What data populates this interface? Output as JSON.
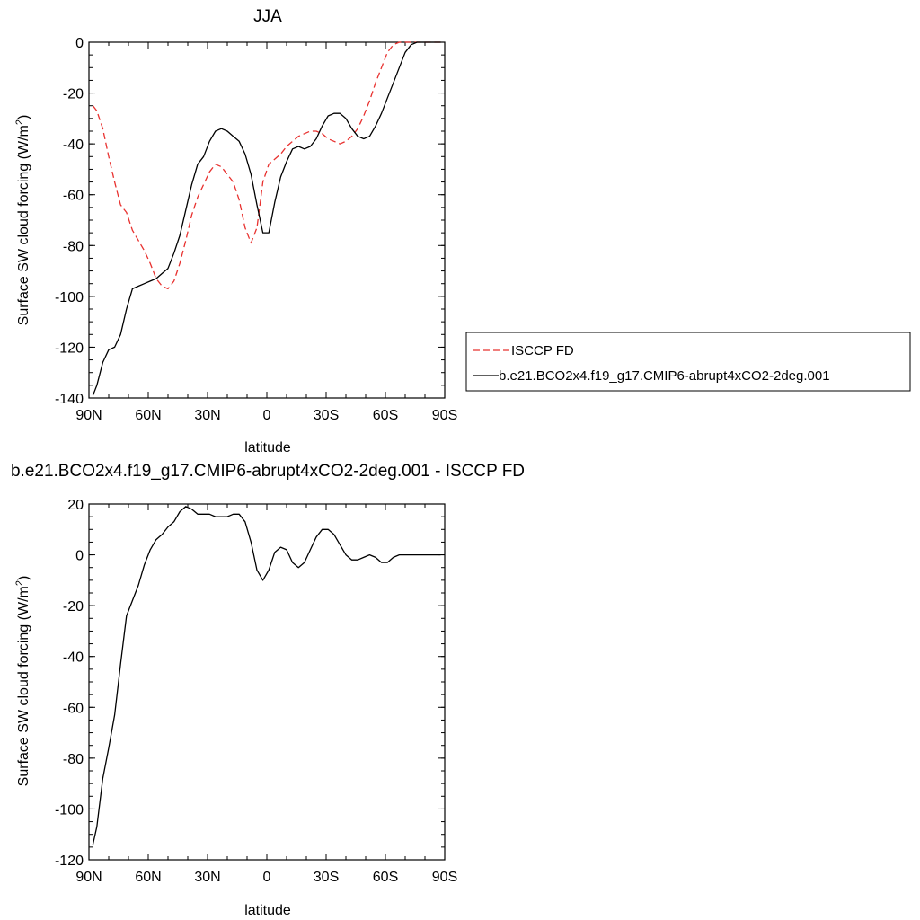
{
  "chart_data": [
    {
      "type": "line",
      "title": "JJA",
      "xlabel": "latitude",
      "ylabel": "Surface SW cloud forcing (W/m²)",
      "ylabel_main": "Surface SW cloud forcing (W/m",
      "ylabel_sup": "2",
      "ylabel_close": ")",
      "xlim": [
        90,
        -90
      ],
      "ylim": [
        -140,
        0
      ],
      "x_ticks": [
        90,
        60,
        30,
        0,
        -30,
        -60,
        -90
      ],
      "x_tick_labels": [
        "90N",
        "60N",
        "30N",
        "0",
        "30S",
        "60S",
        "90S"
      ],
      "y_ticks": [
        0,
        -20,
        -40,
        -60,
        -80,
        -100,
        -120,
        -140
      ],
      "y_tick_labels": [
        "0",
        "-20",
        "-40",
        "-60",
        "-80",
        "-100",
        "-120",
        "-140"
      ],
      "legend_position": "right",
      "series": [
        {
          "name": "ISCCP FD",
          "color": "#e8312f",
          "dash": "dashed",
          "x": [
            88,
            86,
            83,
            80,
            77,
            74,
            71,
            68,
            65,
            62,
            59,
            56,
            53,
            50,
            47,
            44,
            41,
            38,
            35,
            32,
            29,
            26,
            23,
            20,
            17,
            14,
            11,
            8,
            5,
            2,
            -1,
            -4,
            -7,
            -10,
            -13,
            -16,
            -19,
            -22,
            -25,
            -28,
            -31,
            -34,
            -37,
            -40,
            -43,
            -46,
            -49,
            -52,
            -55,
            -58,
            -61,
            -64,
            -67,
            -70,
            -73,
            -76,
            -79,
            -82,
            -85,
            -88
          ],
          "y": [
            -25,
            -27,
            -34,
            -45,
            -55,
            -64,
            -67,
            -74,
            -78,
            -82,
            -87,
            -93,
            -96,
            -97,
            -94,
            -87,
            -78,
            -68,
            -61,
            -56,
            -51,
            -48,
            -49,
            -52,
            -55,
            -62,
            -73,
            -79,
            -73,
            -55,
            -48,
            -46,
            -44,
            -41,
            -39,
            -37,
            -36,
            -35,
            -35,
            -36,
            -38,
            -39,
            -40,
            -39,
            -37,
            -34,
            -29,
            -23,
            -16,
            -10,
            -4,
            -1,
            0,
            0,
            0,
            0,
            0,
            0,
            0,
            0
          ]
        },
        {
          "name": "b.e21.BCO2x4.f19_g17.CMIP6-abrupt4xCO2-2deg.001",
          "color": "#000000",
          "dash": "solid",
          "x": [
            88,
            86,
            83,
            80,
            77,
            74,
            71,
            68,
            65,
            62,
            59,
            56,
            53,
            50,
            47,
            44,
            41,
            38,
            35,
            32,
            29,
            26,
            23,
            20,
            17,
            14,
            11,
            8,
            5,
            2,
            -1,
            -4,
            -7,
            -10,
            -13,
            -16,
            -19,
            -22,
            -25,
            -28,
            -31,
            -34,
            -37,
            -40,
            -43,
            -46,
            -49,
            -52,
            -55,
            -58,
            -61,
            -64,
            -67,
            -70,
            -73,
            -76,
            -79,
            -82,
            -85,
            -88
          ],
          "y": [
            -139,
            -135,
            -126,
            -121,
            -120,
            -115,
            -105,
            -97,
            -96,
            -95,
            -94,
            -93,
            -91,
            -89,
            -83,
            -76,
            -66,
            -56,
            -48,
            -45,
            -39,
            -35,
            -34,
            -35,
            -37,
            -39,
            -44,
            -52,
            -64,
            -75,
            -75,
            -63,
            -53,
            -47,
            -42,
            -41,
            -42,
            -41,
            -38,
            -33,
            -29,
            -28,
            -28,
            -30,
            -34,
            -37,
            -38,
            -37,
            -33,
            -28,
            -22,
            -16,
            -10,
            -4,
            -1,
            0,
            0,
            0,
            0,
            0
          ]
        }
      ]
    },
    {
      "type": "line",
      "title": "b.e21.BCO2x4.f19_g17.CMIP6-abrupt4xCO2-2deg.001 - ISCCP FD",
      "xlabel": "latitude",
      "ylabel": "Surface SW cloud forcing (W/m²)",
      "ylabel_main": "Surface SW cloud forcing (W/m",
      "ylabel_sup": "2",
      "ylabel_close": ")",
      "xlim": [
        90,
        -90
      ],
      "ylim": [
        -120,
        20
      ],
      "x_ticks": [
        90,
        60,
        30,
        0,
        -30,
        -60,
        -90
      ],
      "x_tick_labels": [
        "90N",
        "60N",
        "30N",
        "0",
        "30S",
        "60S",
        "90S"
      ],
      "y_ticks": [
        20,
        0,
        -20,
        -40,
        -60,
        -80,
        -100,
        -120
      ],
      "y_tick_labels": [
        "20",
        "0",
        "-20",
        "-40",
        "-60",
        "-80",
        "-100",
        "-120"
      ],
      "series": [
        {
          "color": "#000000",
          "dash": "solid",
          "x": [
            88,
            86,
            83,
            80,
            77,
            74,
            71,
            68,
            65,
            62,
            59,
            56,
            53,
            50,
            47,
            44,
            41,
            38,
            35,
            32,
            29,
            26,
            23,
            20,
            17,
            14,
            11,
            8,
            5,
            2,
            -1,
            -4,
            -7,
            -10,
            -13,
            -16,
            -19,
            -22,
            -25,
            -28,
            -31,
            -34,
            -37,
            -40,
            -43,
            -46,
            -49,
            -52,
            -55,
            -58,
            -61,
            -64,
            -67,
            -70,
            -73,
            -76,
            -79,
            -82,
            -85,
            -88
          ],
          "y": [
            -114,
            -107,
            -88,
            -76,
            -63,
            -43,
            -24,
            -18,
            -12,
            -4,
            2,
            6,
            8,
            11,
            13,
            17,
            19,
            18,
            16,
            16,
            16,
            15,
            15,
            15,
            16,
            16,
            13,
            5,
            -6,
            -10,
            -6,
            1,
            3,
            2,
            -3,
            -5,
            -3,
            2,
            7,
            10,
            10,
            8,
            4,
            0,
            -2,
            -2,
            -1,
            0,
            -1,
            -3,
            -3,
            -1,
            0,
            0,
            0,
            0,
            0,
            0,
            0,
            0
          ]
        }
      ]
    }
  ]
}
